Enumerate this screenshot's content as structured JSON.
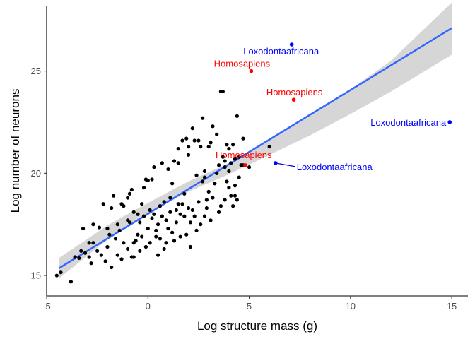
{
  "chart_data": {
    "type": "scatter",
    "title": "",
    "xlabel": "Log structure mass (g)",
    "ylabel": "Log number of neurons",
    "xlim": [
      -5,
      15.8
    ],
    "ylim": [
      14,
      28.2
    ],
    "x_ticks": [
      -5,
      0,
      5,
      10,
      15
    ],
    "x_tick_labels": [
      "-5",
      "0",
      "5",
      "10",
      "15"
    ],
    "y_ticks": [
      15,
      20,
      25
    ],
    "y_tick_labels": [
      "15",
      "20",
      "25"
    ],
    "grid": false,
    "legend": "none",
    "colors": {
      "points": "#000000",
      "fit_line": "#3366FF",
      "ribbon": "#CCCCCC",
      "human": "#FF0000",
      "elephant": "#0000FF"
    },
    "fit": {
      "type": "linear",
      "line": [
        [
          -4.4,
          15.35
        ],
        [
          15.0,
          27.1
        ]
      ],
      "ci_lower": [
        [
          -4.4,
          14.85
        ],
        [
          -2,
          16.75
        ],
        [
          0,
          18.05
        ],
        [
          2,
          19.1
        ],
        [
          4,
          19.95
        ],
        [
          6,
          20.9
        ],
        [
          8,
          21.85
        ],
        [
          10,
          22.9
        ],
        [
          12,
          24.0
        ],
        [
          15.0,
          25.8
        ]
      ],
      "ci_upper": [
        [
          -4.4,
          15.85
        ],
        [
          -2,
          17.45
        ],
        [
          0,
          18.55
        ],
        [
          2,
          19.6
        ],
        [
          4,
          20.5
        ],
        [
          6,
          21.6
        ],
        [
          8,
          22.8
        ],
        [
          10,
          24.1
        ],
        [
          12,
          25.5
        ],
        [
          15.0,
          28.35
        ]
      ]
    },
    "points": [
      [
        -4.5,
        15.0
      ],
      [
        -4.3,
        15.15
      ],
      [
        -3.8,
        14.7
      ],
      [
        -3.6,
        15.9
      ],
      [
        -3.4,
        15.85
      ],
      [
        -3.2,
        17.3
      ],
      [
        -3.1,
        16.1
      ],
      [
        -2.9,
        16.6
      ],
      [
        -2.9,
        15.9
      ],
      [
        -2.8,
        15.6
      ],
      [
        -2.7,
        17.5
      ],
      [
        -2.5,
        16.2
      ],
      [
        -2.4,
        17.35
      ],
      [
        -2.3,
        16.0
      ],
      [
        -2.2,
        18.5
      ],
      [
        -2.1,
        15.7
      ],
      [
        -2.0,
        16.4
      ],
      [
        -1.9,
        17.0
      ],
      [
        -1.8,
        18.3
      ],
      [
        -1.8,
        15.4
      ],
      [
        -1.7,
        18.9
      ],
      [
        -1.6,
        16.8
      ],
      [
        -1.5,
        16.0
      ],
      [
        -1.4,
        17.2
      ],
      [
        -1.3,
        18.5
      ],
      [
        -1.3,
        15.8
      ],
      [
        -1.2,
        16.6
      ],
      [
        -1.2,
        18.4
      ],
      [
        -1.0,
        18.8
      ],
      [
        -1.0,
        16.3
      ],
      [
        -0.9,
        17.6
      ],
      [
        -0.9,
        19.0
      ],
      [
        -0.8,
        15.9
      ],
      [
        -0.8,
        19.2
      ],
      [
        -0.7,
        16.6
      ],
      [
        -0.7,
        18.1
      ],
      [
        -0.6,
        16.7
      ],
      [
        -0.5,
        17.0
      ],
      [
        -0.5,
        18.0
      ],
      [
        -0.4,
        16.2
      ],
      [
        -0.4,
        17.6
      ],
      [
        -0.3,
        18.5
      ],
      [
        -0.3,
        16.9
      ],
      [
        -0.2,
        17.9
      ],
      [
        -0.1,
        19.7
      ],
      [
        -0.1,
        16.4
      ],
      [
        0.0,
        19.65
      ],
      [
        0.0,
        17.3
      ],
      [
        0.1,
        18.2
      ],
      [
        0.1,
        16.6
      ],
      [
        0.2,
        17.8
      ],
      [
        0.2,
        19.7
      ],
      [
        0.3,
        18.0
      ],
      [
        0.3,
        20.3
      ],
      [
        0.4,
        17.2
      ],
      [
        0.4,
        16.9
      ],
      [
        0.5,
        17.5
      ],
      [
        0.6,
        18.4
      ],
      [
        0.6,
        16.8
      ],
      [
        0.7,
        20.5
      ],
      [
        0.7,
        17.9
      ],
      [
        0.8,
        16.3
      ],
      [
        0.8,
        18.6
      ],
      [
        0.9,
        17.7
      ],
      [
        1.0,
        20.2
      ],
      [
        1.0,
        17.3
      ],
      [
        1.1,
        18.1
      ],
      [
        1.1,
        18.8
      ],
      [
        1.2,
        17.1
      ],
      [
        1.3,
        16.7
      ],
      [
        1.3,
        20.6
      ],
      [
        1.4,
        17.6
      ],
      [
        1.5,
        21.2
      ],
      [
        1.5,
        18.5
      ],
      [
        1.6,
        18.0
      ],
      [
        1.6,
        16.9
      ],
      [
        1.7,
        21.6
      ],
      [
        1.7,
        18.5
      ],
      [
        1.8,
        17.9
      ],
      [
        1.8,
        19.0
      ],
      [
        1.9,
        21.7
      ],
      [
        1.9,
        17.0
      ],
      [
        2.0,
        21.3
      ],
      [
        2.0,
        18.3
      ],
      [
        2.0,
        20.9
      ],
      [
        2.1,
        16.4
      ],
      [
        2.1,
        17.6
      ],
      [
        2.2,
        22.2
      ],
      [
        2.2,
        18.2
      ],
      [
        2.3,
        21.6
      ],
      [
        2.3,
        17.9
      ],
      [
        2.4,
        17.2
      ],
      [
        2.4,
        19.9
      ],
      [
        2.5,
        18.6
      ],
      [
        2.5,
        21.6
      ],
      [
        2.6,
        17.5
      ],
      [
        2.7,
        19.6
      ],
      [
        2.7,
        22.7
      ],
      [
        2.8,
        17.9
      ],
      [
        2.8,
        20.1
      ],
      [
        2.9,
        18.3
      ],
      [
        3.0,
        19.1
      ],
      [
        3.0,
        21.3
      ],
      [
        3.1,
        17.7
      ],
      [
        3.2,
        18.8
      ],
      [
        3.2,
        22.3
      ],
      [
        3.3,
        19.5
      ],
      [
        3.4,
        21.9
      ],
      [
        3.5,
        18.1
      ],
      [
        3.5,
        20.4
      ],
      [
        3.6,
        18.4
      ],
      [
        3.6,
        24.0
      ],
      [
        3.7,
        20.8
      ],
      [
        3.7,
        24.0
      ],
      [
        3.8,
        20.6
      ],
      [
        3.8,
        18.7
      ],
      [
        3.9,
        21.4
      ],
      [
        3.9,
        19.6
      ],
      [
        4.0,
        21.2
      ],
      [
        4.0,
        20.1
      ],
      [
        4.1,
        18.9
      ],
      [
        4.1,
        20.5
      ],
      [
        4.2,
        18.4
      ],
      [
        4.2,
        21.4
      ],
      [
        4.3,
        20.7
      ],
      [
        4.3,
        19.4
      ],
      [
        4.4,
        18.7
      ],
      [
        4.4,
        22.8
      ],
      [
        4.5,
        20.8
      ],
      [
        4.5,
        19.8
      ],
      [
        4.6,
        20.4
      ],
      [
        4.7,
        20.4
      ],
      [
        4.7,
        21.7
      ],
      [
        5.0,
        20.3
      ],
      [
        6.0,
        21.3
      ],
      [
        -1.0,
        17.7
      ],
      [
        0.5,
        16.0
      ],
      [
        1.5,
        20.5
      ],
      [
        2.6,
        21.3
      ],
      [
        3.4,
        20.0
      ],
      [
        -2.7,
        16.6
      ],
      [
        -0.2,
        19.3
      ],
      [
        1.2,
        19.5
      ],
      [
        2.9,
        18.7
      ],
      [
        4.0,
        19.3
      ],
      [
        -1.5,
        17.5
      ],
      [
        0.9,
        16.6
      ],
      [
        3.1,
        21.5
      ],
      [
        -3.3,
        16.2
      ],
      [
        1.4,
        18.2
      ],
      [
        4.3,
        18.9
      ],
      [
        -0.7,
        15.9
      ],
      [
        2.8,
        19.8
      ],
      [
        -2.0,
        17.3
      ],
      [
        3.8,
        20.3
      ]
    ],
    "highlighted_points": [
      {
        "x": 4.8,
        "y": 20.4,
        "label": "Homosapiens",
        "group": "human"
      },
      {
        "x": 5.1,
        "y": 25.0,
        "label": "Homosapiens",
        "group": "human"
      },
      {
        "x": 7.2,
        "y": 23.6,
        "label": "Homosapiens",
        "group": "human"
      },
      {
        "x": 7.1,
        "y": 26.3,
        "label": "Loxodontaafricana",
        "group": "elephant"
      },
      {
        "x": 6.3,
        "y": 20.5,
        "label": "Loxodontaafricana",
        "group": "elephant"
      },
      {
        "x": 14.9,
        "y": 22.5,
        "label": "Loxodontaafricana",
        "group": "elephant"
      }
    ]
  }
}
